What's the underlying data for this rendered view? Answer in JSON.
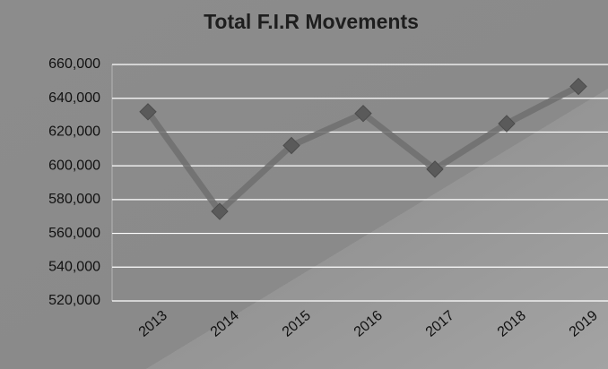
{
  "chart_data": {
    "type": "line",
    "title": "Total F.I.R Movements",
    "categories": [
      "2013",
      "2014",
      "2015",
      "2016",
      "2017",
      "2018",
      "2019"
    ],
    "series": [
      {
        "name": "Total F.I.R Movements",
        "color": "#6e6e6e",
        "values": [
          632000,
          573000,
          612000,
          631000,
          598000,
          625000,
          647000
        ]
      }
    ],
    "ylim": [
      520000,
      660000
    ],
    "yticks": [
      {
        "value": 520000,
        "label": "520,000"
      },
      {
        "value": 540000,
        "label": "540,000"
      },
      {
        "value": 560000,
        "label": "560,000"
      },
      {
        "value": 580000,
        "label": "580,000"
      },
      {
        "value": 600000,
        "label": "600,000"
      },
      {
        "value": 620000,
        "label": "620,000"
      },
      {
        "value": 640000,
        "label": "640,000"
      },
      {
        "value": 660000,
        "label": "660,000"
      }
    ],
    "grid": true
  }
}
